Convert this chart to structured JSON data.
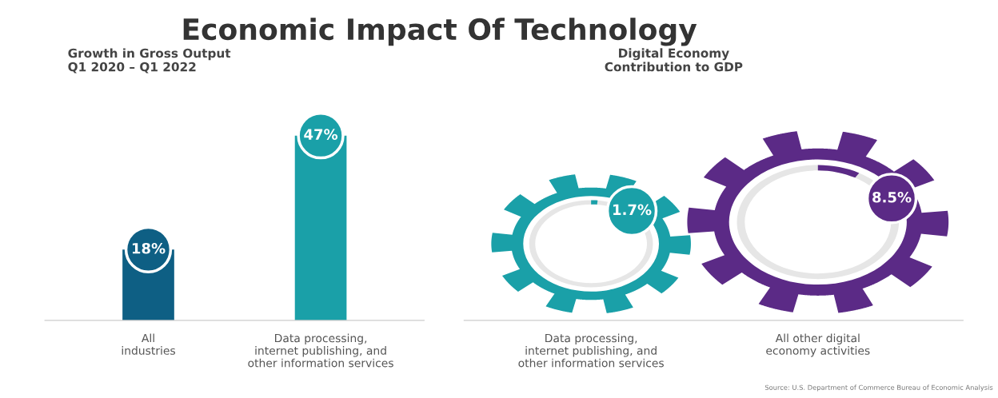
{
  "chart_data": [
    {
      "type": "other",
      "title": "Economic Impact Of Technology",
      "annotations": [
        "Source: U.S. Department of Commerce Bureau of Economic Analysis"
      ]
    },
    {
      "type": "bar",
      "title": "Growth in Gross Output\nQ1 2020 – Q1 2022",
      "categories": [
        "All\nindustries",
        "Data processing,\ninternet publishing, and\nother information services"
      ],
      "values": [
        18,
        47
      ],
      "colors": [
        "#0e5f84",
        "#1aa0a8"
      ],
      "value_labels": [
        "18%",
        "47%"
      ]
    },
    {
      "type": "other",
      "title": "Digital Economy\nContribution to GDP",
      "categories": [
        "Data processing,\ninternet publishing, and\nother information services",
        "All other digital\neconomy activities"
      ],
      "values": [
        1.7,
        8.5
      ],
      "colors": [
        "#1aa0a8",
        "#5b2a86"
      ],
      "value_labels": [
        "1.7%",
        "8.5%"
      ]
    }
  ]
}
